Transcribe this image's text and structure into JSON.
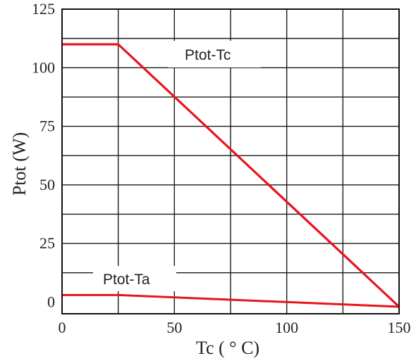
{
  "chart_data": {
    "type": "line",
    "xlabel": "Tc ( ° C)",
    "ylabel": "Ptot (W)",
    "xlim": [
      0,
      150
    ],
    "ylim": [
      -5,
      125
    ],
    "x_ticks": [
      "0",
      "50",
      "100",
      "150"
    ],
    "x_tick_values": [
      0,
      50,
      100,
      150
    ],
    "y_ticks": [
      "0",
      "25",
      "50",
      "75",
      "100",
      "125"
    ],
    "y_tick_values": [
      0,
      25,
      50,
      75,
      100,
      125
    ],
    "grid": true,
    "colors": {
      "series": "#e8141c",
      "grid": "#1a1a1a",
      "background": "#ffffff"
    },
    "series": [
      {
        "name": "Ptot-Tc",
        "points": [
          [
            0,
            110
          ],
          [
            25,
            110
          ],
          [
            150,
            -2
          ]
        ]
      },
      {
        "name": "Ptot-Ta",
        "points": [
          [
            0,
            3
          ],
          [
            25,
            3
          ],
          [
            150,
            -2
          ]
        ]
      }
    ]
  }
}
